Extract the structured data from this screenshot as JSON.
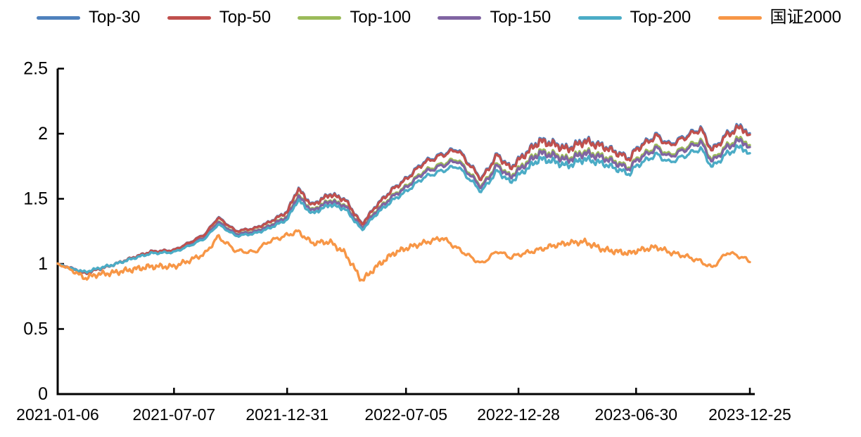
{
  "chart_data": {
    "type": "line",
    "title": "",
    "xlabel": "",
    "ylabel": "",
    "ylim": [
      0,
      2.5
    ],
    "grid": false,
    "legend_position": "top",
    "axis_color": "#000000",
    "ytick_labels": [
      "0",
      "0.5",
      "1",
      "1.5",
      "2",
      "2.5"
    ],
    "xtick_labels": [
      "2021-01-06",
      "2021-07-07",
      "2021-12-31",
      "2022-07-05",
      "2022-12-28",
      "2023-06-30",
      "2023-12-25"
    ],
    "x_dates": [
      "2021-01-06",
      "2021-01-25",
      "2021-02-18",
      "2021-03-09",
      "2021-04-01",
      "2021-05-06",
      "2021-06-01",
      "2021-07-07",
      "2021-08-02",
      "2021-08-25",
      "2021-09-14",
      "2021-10-12",
      "2021-11-10",
      "2021-12-01",
      "2021-12-31",
      "2022-01-17",
      "2022-02-08",
      "2022-03-08",
      "2022-04-01",
      "2022-04-27",
      "2022-05-20",
      "2022-06-15",
      "2022-07-05",
      "2022-08-01",
      "2022-08-31",
      "2022-09-23",
      "2022-10-31",
      "2022-11-25",
      "2022-12-15",
      "2022-12-28",
      "2023-01-30",
      "2023-02-20",
      "2023-03-15",
      "2023-04-10",
      "2023-05-10",
      "2023-06-20",
      "2023-06-30",
      "2023-08-01",
      "2023-08-21",
      "2023-09-15",
      "2023-10-09",
      "2023-10-27",
      "2023-11-20",
      "2023-12-13",
      "2023-12-25"
    ],
    "series": [
      {
        "name": "Top-30",
        "color": "#4F81BD",
        "group": "cluster",
        "values": [
          1.0,
          0.968,
          0.926,
          0.958,
          0.989,
          1.053,
          1.095,
          1.106,
          1.169,
          1.232,
          1.359,
          1.253,
          1.274,
          1.317,
          1.401,
          1.58,
          1.454,
          1.538,
          1.496,
          1.306,
          1.454,
          1.58,
          1.654,
          1.781,
          1.844,
          1.886,
          1.654,
          1.844,
          1.739,
          1.802,
          1.95,
          1.928,
          1.886,
          1.95,
          1.907,
          1.812,
          1.886,
          1.992,
          1.918,
          1.981,
          2.044,
          1.876,
          2.002,
          2.066,
          1.971
        ]
      },
      {
        "name": "Top-50",
        "color": "#C0504D",
        "group": "cluster",
        "values": [
          1.0,
          0.969,
          0.927,
          0.958,
          0.99,
          1.052,
          1.094,
          1.105,
          1.167,
          1.23,
          1.355,
          1.251,
          1.272,
          1.314,
          1.397,
          1.575,
          1.449,
          1.533,
          1.491,
          1.303,
          1.449,
          1.575,
          1.648,
          1.773,
          1.836,
          1.878,
          1.648,
          1.836,
          1.732,
          1.794,
          1.941,
          1.92,
          1.878,
          1.941,
          1.899,
          1.805,
          1.878,
          1.982,
          1.909,
          1.972,
          2.035,
          1.867,
          1.993,
          2.055,
          1.961
        ]
      },
      {
        "name": "Top-100",
        "color": "#9BBB59",
        "group": "cluster",
        "values": [
          1.0,
          0.971,
          0.933,
          0.962,
          0.99,
          1.048,
          1.086,
          1.096,
          1.154,
          1.211,
          1.326,
          1.23,
          1.25,
          1.288,
          1.365,
          1.528,
          1.413,
          1.49,
          1.451,
          1.278,
          1.413,
          1.528,
          1.595,
          1.71,
          1.768,
          1.806,
          1.595,
          1.768,
          1.672,
          1.73,
          1.864,
          1.845,
          1.806,
          1.864,
          1.826,
          1.739,
          1.806,
          1.902,
          1.835,
          1.893,
          1.95,
          1.797,
          1.912,
          1.97,
          1.883
        ]
      },
      {
        "name": "Top-150",
        "color": "#8064A2",
        "group": "cluster",
        "values": [
          1.0,
          0.972,
          0.934,
          0.962,
          0.991,
          1.047,
          1.085,
          1.095,
          1.151,
          1.208,
          1.321,
          1.227,
          1.246,
          1.284,
          1.359,
          1.52,
          1.406,
          1.482,
          1.444,
          1.274,
          1.406,
          1.52,
          1.586,
          1.699,
          1.756,
          1.794,
          1.586,
          1.756,
          1.662,
          1.718,
          1.851,
          1.832,
          1.794,
          1.851,
          1.813,
          1.728,
          1.794,
          1.888,
          1.822,
          1.879,
          1.936,
          1.784,
          1.898,
          1.954,
          1.869
        ]
      },
      {
        "name": "Top-200",
        "color": "#4BACC6",
        "group": "cluster",
        "values": [
          1.0,
          0.967,
          0.937,
          0.964,
          0.991,
          1.045,
          1.081,
          1.09,
          1.143,
          1.197,
          1.304,
          1.215,
          1.233,
          1.269,
          1.34,
          1.492,
          1.385,
          1.456,
          1.421,
          1.26,
          1.385,
          1.492,
          1.555,
          1.662,
          1.716,
          1.752,
          1.555,
          1.716,
          1.627,
          1.68,
          1.806,
          1.788,
          1.752,
          1.806,
          1.77,
          1.689,
          1.752,
          1.841,
          1.779,
          1.832,
          1.886,
          1.743,
          1.85,
          1.904,
          1.823
        ]
      },
      {
        "name": "国证2000",
        "color": "#F79646",
        "group": "benchmark",
        "values": [
          1.0,
          0.96,
          0.89,
          0.92,
          0.93,
          0.96,
          0.98,
          0.98,
          1.03,
          1.08,
          1.21,
          1.1,
          1.09,
          1.17,
          1.22,
          1.25,
          1.16,
          1.17,
          1.08,
          0.87,
          0.98,
          1.08,
          1.12,
          1.16,
          1.2,
          1.12,
          1.0,
          1.1,
          1.05,
          1.07,
          1.11,
          1.14,
          1.16,
          1.17,
          1.11,
          1.08,
          1.1,
          1.13,
          1.09,
          1.06,
          1.02,
          0.97,
          1.09,
          1.05,
          1.02
        ]
      }
    ]
  }
}
